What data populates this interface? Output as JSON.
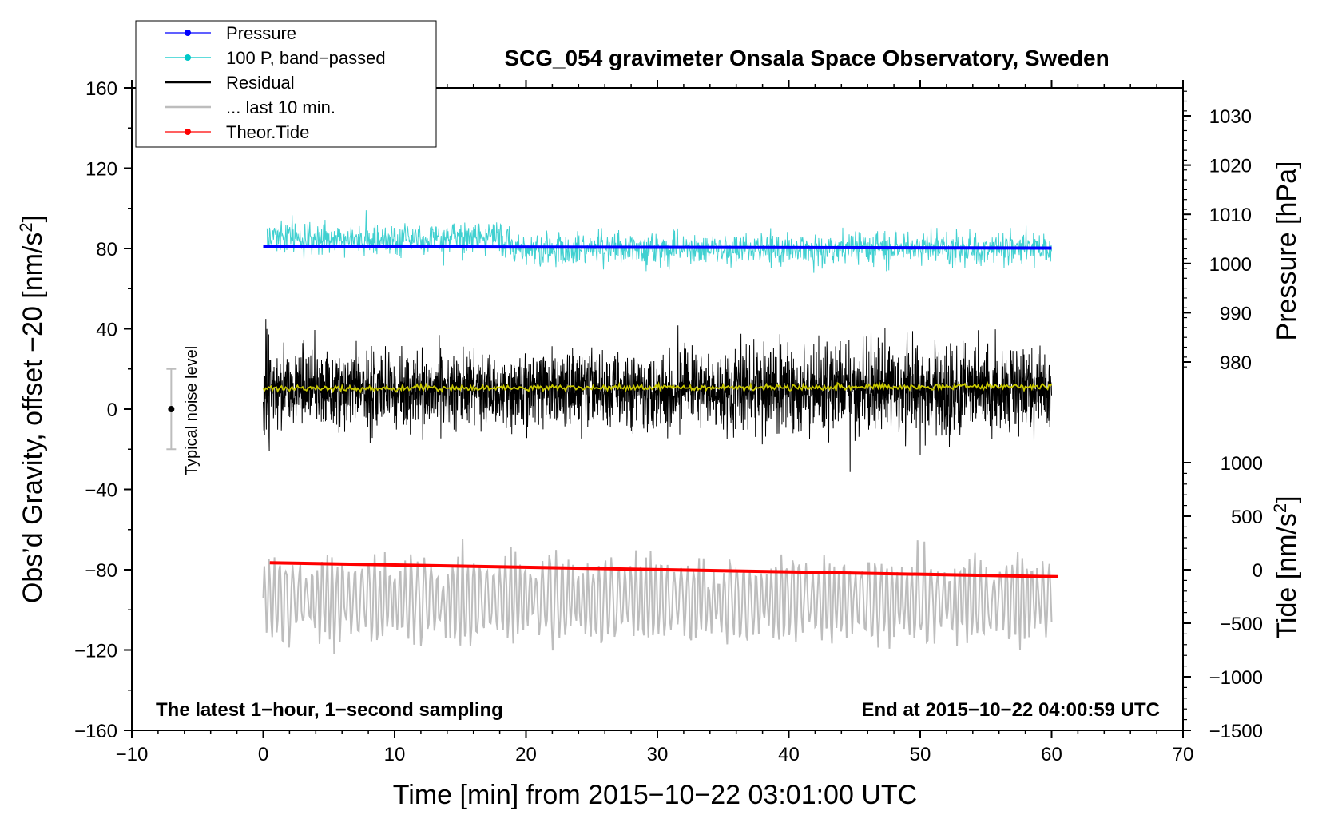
{
  "chart_data": {
    "type": "line",
    "title": "SCG_054 gravimeter Onsala Space Observatory, Sweden",
    "xlabel": "Time [min] from 2015−10−22 03:01:00 UTC",
    "ylabel_left": "Obs’d Gravity, offset −20 [nm/s",
    "ylabel_right_top": "Pressure [hPa]",
    "ylabel_right_bottom": "Tide [nm/s",
    "sup2": "2",
    "close_bracket": "]",
    "xlim": [
      -10,
      70
    ],
    "ylim": [
      -160,
      160
    ],
    "x_ticks": [
      -10,
      0,
      10,
      20,
      30,
      40,
      50,
      60,
      70
    ],
    "x_tick_labels": [
      "−10",
      "0",
      "10",
      "20",
      "30",
      "40",
      "50",
      "60",
      "70"
    ],
    "y_ticks": [
      160,
      120,
      80,
      40,
      0,
      -40,
      -80,
      -120,
      -160
    ],
    "y_tick_labels": [
      "160",
      "120",
      "80",
      "40",
      "0",
      "−40",
      "−80",
      "−120",
      "−160"
    ],
    "pressure_axis": {
      "ticks": [
        1030,
        1020,
        1010,
        1000,
        990,
        980
      ],
      "labels": [
        "1030",
        "1020",
        "1010",
        "1000",
        "990",
        "980"
      ]
    },
    "tide_axis": {
      "ticks": [
        1000,
        500,
        0,
        -500,
        -1000,
        -1500
      ],
      "labels": [
        "1000",
        "500",
        "0",
        "−500",
        "−1000",
        "−1500"
      ]
    },
    "legend": [
      {
        "label": "Pressure",
        "color": "#0000ff",
        "marker": true
      },
      {
        "label": "100 P, band−passed",
        "color": "#00c8c8",
        "marker": true
      },
      {
        "label": "Residual",
        "color": "#000000",
        "marker": false
      },
      {
        "label": "... last 10 min.",
        "color": "#bdbdbd",
        "marker": false
      },
      {
        "label": "Theor.Tide",
        "color": "#ff0000",
        "marker": true
      }
    ],
    "series": [
      {
        "name": "Pressure",
        "color": "#0000ff",
        "x": [
          0,
          60
        ],
        "y": [
          81,
          80.2
        ]
      },
      {
        "name": "100 P, band−passed",
        "color": "#40d0d0",
        "x_range": [
          0.3,
          60
        ],
        "center": 82,
        "amplitude": 8
      },
      {
        "name": "Residual",
        "color": "#000000",
        "x_range": [
          0,
          60
        ],
        "center": 10,
        "amplitude": 17
      },
      {
        "name": "Residual smoothed",
        "color": "#c8c800",
        "x_range": [
          0,
          60
        ],
        "center": 11,
        "amplitude": 1.5
      },
      {
        "name": "... last 10 min.",
        "color": "#bdbdbd",
        "x_range": [
          0,
          60
        ],
        "center": -95,
        "amplitude": 13
      },
      {
        "name": "Theor.Tide",
        "color": "#ff0000",
        "x": [
          0.5,
          60.5
        ],
        "y": [
          -76.5,
          -83.5
        ]
      }
    ],
    "noise_bar": {
      "x": -7,
      "y": 0,
      "low": -20,
      "high": 20,
      "label": "Typical noise level"
    },
    "annotations": {
      "bottom_left": "The latest 1−hour, 1−second sampling",
      "bottom_right": "End at 2015−10−22 04:00:59 UTC"
    }
  }
}
